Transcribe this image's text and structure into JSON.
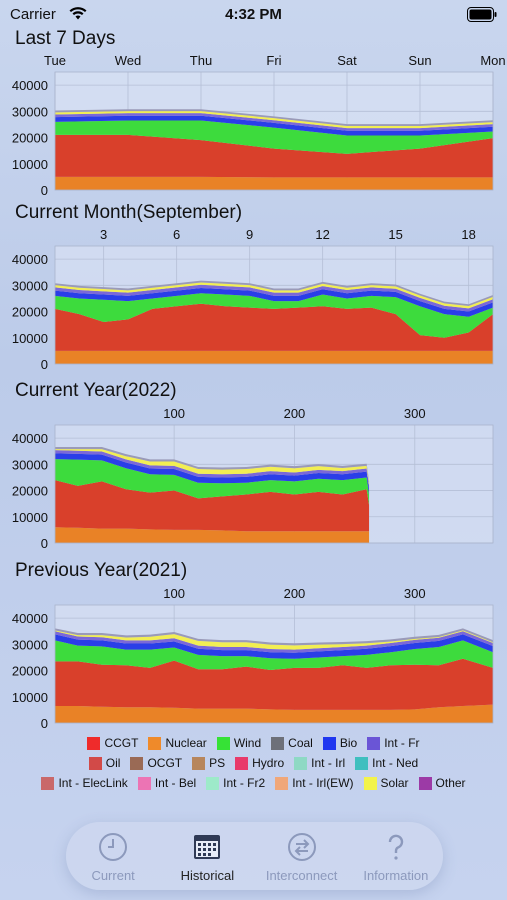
{
  "status": {
    "carrier": "Carrier",
    "time": "4:32 PM"
  },
  "sections": [
    {
      "title": "Last 7 Days"
    },
    {
      "title": "Current Month(September)"
    },
    {
      "title": "Current Year(2022)"
    },
    {
      "title": "Previous Year(2021)"
    }
  ],
  "chart_data": [
    {
      "type": "area",
      "stacked": true,
      "x_tick_labels": [
        "Tue",
        "Wed",
        "Thu",
        "Fri",
        "Sat",
        "Sun",
        "Mon"
      ],
      "ylim": [
        0,
        45000
      ],
      "y_ticks": [
        0,
        10000,
        20000,
        30000,
        40000
      ],
      "x": [
        0,
        1,
        2,
        3,
        4,
        5,
        6
      ],
      "series": [
        {
          "name": "Nuclear",
          "values": [
            5000,
            5000,
            5000,
            4800,
            4800,
            4800,
            4800
          ]
        },
        {
          "name": "CCGT",
          "values": [
            16000,
            16000,
            14000,
            11000,
            9000,
            11000,
            15000
          ]
        },
        {
          "name": "Wind",
          "values": [
            5000,
            5500,
            7500,
            8000,
            7000,
            5000,
            2500
          ]
        },
        {
          "name": "Bio",
          "values": [
            1800,
            1800,
            1800,
            1800,
            1800,
            1800,
            1800
          ]
        },
        {
          "name": "Int - Fr",
          "values": [
            1000,
            1000,
            1000,
            1000,
            1000,
            1000,
            1000
          ]
        },
        {
          "name": "Solar",
          "values": [
            800,
            800,
            800,
            800,
            800,
            800,
            800
          ]
        },
        {
          "name": "Other",
          "values": [
            700,
            700,
            700,
            700,
            700,
            700,
            700
          ]
        }
      ]
    },
    {
      "type": "area",
      "stacked": true,
      "x_tick_labels": [
        "3",
        "6",
        "9",
        "12",
        "15",
        "18"
      ],
      "x_ticks": [
        3,
        6,
        9,
        12,
        15,
        18
      ],
      "xlim": [
        1,
        19
      ],
      "ylim": [
        0,
        45000
      ],
      "y_ticks": [
        0,
        10000,
        20000,
        30000,
        40000
      ],
      "x": [
        1,
        2,
        3,
        4,
        5,
        6,
        7,
        8,
        9,
        10,
        11,
        12,
        13,
        14,
        15,
        16,
        17,
        18,
        19
      ],
      "series": [
        {
          "name": "Nuclear",
          "values": [
            5000,
            5000,
            5000,
            5000,
            5000,
            5000,
            5000,
            5000,
            5000,
            5000,
            5000,
            5000,
            5000,
            5000,
            5000,
            5000,
            5000,
            5000,
            5000
          ]
        },
        {
          "name": "CCGT",
          "values": [
            16000,
            14000,
            11000,
            12000,
            16000,
            17000,
            18000,
            17000,
            16500,
            16000,
            16500,
            17000,
            16000,
            16500,
            14000,
            6000,
            5000,
            7000,
            14000
          ]
        },
        {
          "name": "Wind",
          "values": [
            5000,
            6000,
            8500,
            7000,
            4000,
            4000,
            4000,
            4500,
            4500,
            3000,
            2500,
            4500,
            4000,
            4500,
            6500,
            11000,
            9000,
            6000,
            2500
          ]
        },
        {
          "name": "Bio",
          "values": [
            2000,
            2000,
            2000,
            2000,
            2000,
            2000,
            2000,
            2000,
            2000,
            2000,
            2000,
            2000,
            2000,
            2000,
            2000,
            2000,
            2000,
            2000,
            2000
          ]
        },
        {
          "name": "Int - Fr",
          "values": [
            1200,
            1200,
            1200,
            1200,
            1200,
            1200,
            1200,
            1200,
            1200,
            1200,
            1200,
            1200,
            1200,
            1200,
            1200,
            1200,
            1200,
            1200,
            1200
          ]
        },
        {
          "name": "Solar",
          "values": [
            900,
            900,
            900,
            900,
            900,
            900,
            900,
            900,
            900,
            900,
            900,
            900,
            900,
            900,
            900,
            900,
            900,
            900,
            900
          ]
        },
        {
          "name": "Other",
          "values": [
            700,
            700,
            700,
            700,
            700,
            700,
            700,
            700,
            700,
            700,
            700,
            700,
            700,
            700,
            700,
            700,
            700,
            700,
            700
          ]
        }
      ]
    },
    {
      "type": "area",
      "stacked": true,
      "x_tick_labels": [
        "100",
        "200",
        "300"
      ],
      "x_ticks": [
        100,
        200,
        300
      ],
      "xlim": [
        1,
        365
      ],
      "ylim": [
        0,
        45000
      ],
      "y_ticks": [
        0,
        10000,
        20000,
        30000,
        40000
      ],
      "x": [
        1,
        20,
        40,
        60,
        80,
        100,
        120,
        140,
        160,
        180,
        200,
        220,
        240,
        260,
        262
      ],
      "series": [
        {
          "name": "Nuclear",
          "values": [
            6000,
            5800,
            5500,
            5500,
            5200,
            5000,
            5000,
            4800,
            4500,
            4500,
            4500,
            4500,
            4500,
            4500,
            4500
          ]
        },
        {
          "name": "CCGT",
          "values": [
            18000,
            16000,
            18000,
            15000,
            14000,
            15000,
            12000,
            13000,
            14000,
            15000,
            14000,
            15000,
            14000,
            16000,
            10000
          ]
        },
        {
          "name": "Wind",
          "values": [
            8000,
            10000,
            8000,
            8000,
            7000,
            6000,
            6000,
            5000,
            4500,
            4500,
            5000,
            5000,
            5500,
            4500,
            4000
          ]
        },
        {
          "name": "Bio",
          "values": [
            2200,
            2200,
            2200,
            2200,
            2200,
            2200,
            2200,
            2200,
            2200,
            2200,
            2200,
            2200,
            2200,
            2200,
            2200
          ]
        },
        {
          "name": "Int - Fr",
          "values": [
            1200,
            1200,
            1200,
            1200,
            1200,
            1200,
            1200,
            1200,
            1200,
            1200,
            1200,
            1200,
            1200,
            1200,
            1200
          ]
        },
        {
          "name": "Solar",
          "values": [
            400,
            600,
            900,
            1200,
            1500,
            1700,
            1800,
            1800,
            1800,
            1700,
            1600,
            1400,
            1200,
            1000,
            1000
          ]
        },
        {
          "name": "Other",
          "values": [
            800,
            800,
            800,
            800,
            800,
            800,
            800,
            800,
            800,
            800,
            800,
            800,
            800,
            800,
            800
          ]
        }
      ]
    },
    {
      "type": "area",
      "stacked": true,
      "x_tick_labels": [
        "100",
        "200",
        "300"
      ],
      "x_ticks": [
        100,
        200,
        300
      ],
      "xlim": [
        1,
        365
      ],
      "ylim": [
        0,
        45000
      ],
      "y_ticks": [
        0,
        10000,
        20000,
        30000,
        40000
      ],
      "x": [
        1,
        20,
        40,
        60,
        80,
        100,
        120,
        140,
        160,
        180,
        200,
        220,
        240,
        260,
        280,
        300,
        320,
        340,
        365
      ],
      "series": [
        {
          "name": "Nuclear",
          "values": [
            6500,
            6500,
            6200,
            6000,
            6000,
            5800,
            5500,
            5500,
            5500,
            5200,
            5000,
            5000,
            5000,
            5000,
            5000,
            5200,
            6000,
            6500,
            7000
          ]
        },
        {
          "name": "CCGT",
          "values": [
            17000,
            17000,
            16000,
            16000,
            15000,
            18000,
            15000,
            15000,
            16000,
            15000,
            16000,
            16000,
            17000,
            16000,
            17000,
            17000,
            16000,
            18000,
            14000
          ]
        },
        {
          "name": "Wind",
          "values": [
            8000,
            6000,
            7000,
            6000,
            7000,
            5000,
            5500,
            5000,
            4000,
            4500,
            3500,
            4000,
            3500,
            5000,
            5000,
            6000,
            7000,
            7000,
            6000
          ]
        },
        {
          "name": "Bio",
          "values": [
            2300,
            2300,
            2300,
            2300,
            2300,
            2300,
            2300,
            2300,
            2300,
            2300,
            2300,
            2300,
            2300,
            2300,
            2300,
            2300,
            2300,
            2300,
            2300
          ]
        },
        {
          "name": "Int - Fr",
          "values": [
            1200,
            1200,
            1200,
            1200,
            1200,
            1200,
            1200,
            1200,
            1200,
            1200,
            1200,
            1200,
            1200,
            1200,
            1200,
            1200,
            1200,
            1200,
            1200
          ]
        },
        {
          "name": "Solar",
          "values": [
            300,
            500,
            800,
            1100,
            1400,
            1600,
            1800,
            1800,
            1800,
            1700,
            1600,
            1400,
            1100,
            900,
            600,
            400,
            300,
            300,
            300
          ]
        },
        {
          "name": "Other",
          "values": [
            800,
            800,
            800,
            800,
            800,
            800,
            800,
            800,
            800,
            800,
            800,
            800,
            800,
            800,
            800,
            800,
            800,
            800,
            800
          ]
        }
      ]
    }
  ],
  "series_colors": {
    "Nuclear": "#e98226",
    "CCGT": "#d9402b",
    "Wind": "#3ddb3d",
    "Bio": "#2a3ee8",
    "Int - Fr": "#7b68d8",
    "Solar": "#f2ee52",
    "Other": "#9a9ab8"
  },
  "legend": [
    [
      {
        "label": "CCGT",
        "color": "#ef2b2b"
      },
      {
        "label": "Nuclear",
        "color": "#ef8a2a"
      },
      {
        "label": "Wind",
        "color": "#36e236"
      },
      {
        "label": "Coal",
        "color": "#6d7079"
      },
      {
        "label": "Bio",
        "color": "#1f37f0"
      },
      {
        "label": "Int - Fr",
        "color": "#6a55d6"
      }
    ],
    [
      {
        "label": "Oil",
        "color": "#d24a48"
      },
      {
        "label": "OCGT",
        "color": "#9a6a55"
      },
      {
        "label": "PS",
        "color": "#b7865c"
      },
      {
        "label": "Hydro",
        "color": "#e83a6a"
      },
      {
        "label": "Int - Irl",
        "color": "#8ed9c4"
      },
      {
        "label": "Int - Ned",
        "color": "#3fbfbf"
      }
    ],
    [
      {
        "label": "Int - ElecLink",
        "color": "#c9686a"
      },
      {
        "label": "Int - Bel",
        "color": "#ec74b4"
      },
      {
        "label": "Int - Fr2",
        "color": "#9deac9"
      },
      {
        "label": "Int - Irl(EW)",
        "color": "#f0a779"
      },
      {
        "label": "Solar",
        "color": "#f3f34a"
      },
      {
        "label": "Other",
        "color": "#9c3aa6"
      }
    ]
  ],
  "tabs": [
    {
      "label": "Current",
      "icon": "clock-icon",
      "active": false
    },
    {
      "label": "Historical",
      "icon": "calendar-icon",
      "active": true
    },
    {
      "label": "Interconnect",
      "icon": "arrows-exchange-icon",
      "active": false
    },
    {
      "label": "Information",
      "icon": "question-mark-icon",
      "active": false
    }
  ]
}
